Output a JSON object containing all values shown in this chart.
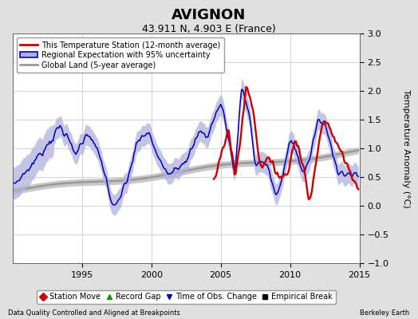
{
  "title": "AVIGNON",
  "subtitle": "43.911 N, 4.903 E (France)",
  "ylabel": "Temperature Anomaly (°C)",
  "footer_left": "Data Quality Controlled and Aligned at Breakpoints",
  "footer_right": "Berkeley Earth",
  "xlim": [
    1990.0,
    2015.0
  ],
  "ylim": [
    -1.0,
    3.0
  ],
  "yticks": [
    -1,
    -0.5,
    0,
    0.5,
    1,
    1.5,
    2,
    2.5,
    3
  ],
  "xticks": [
    1995,
    2000,
    2005,
    2010,
    2015
  ],
  "background_color": "#e0e0e0",
  "plot_bg_color": "#ffffff",
  "grid_color": "#cccccc",
  "red_line_color": "#cc0000",
  "blue_line_color": "#0000bb",
  "blue_fill_color": "#b0b0dd",
  "gray_line_color": "#999999",
  "gray_fill_color": "#bbbbbb",
  "legend1_labels": [
    "This Temperature Station (12-month average)",
    "Regional Expectation with 95% uncertainty",
    "Global Land (5-year average)"
  ],
  "legend2_labels": [
    "Station Move",
    "Record Gap",
    "Time of Obs. Change",
    "Empirical Break"
  ],
  "red_start_year": 2004.5,
  "title_fontsize": 13,
  "subtitle_fontsize": 9,
  "axis_fontsize": 8,
  "ylabel_fontsize": 8
}
